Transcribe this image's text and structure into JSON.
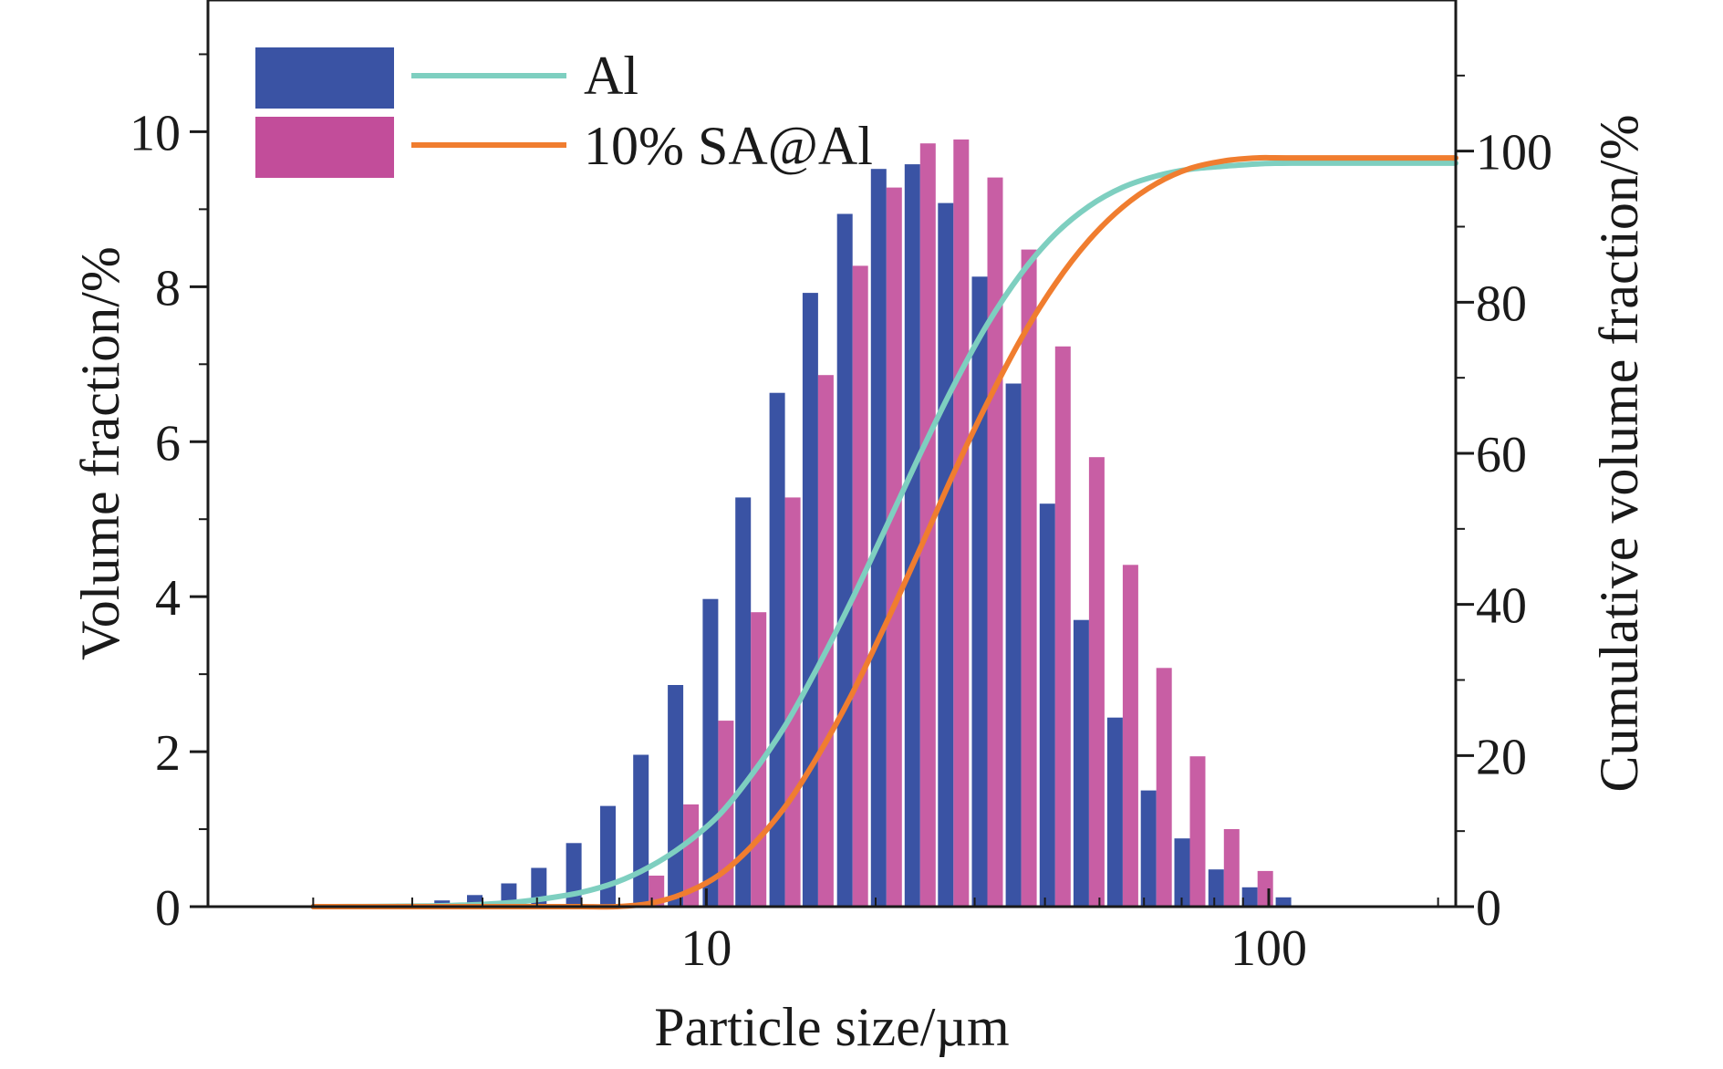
{
  "chart_data": {
    "type": "bar",
    "xscale": "log",
    "xlabel": "Particle size/µm",
    "ylabel": "Volume fraction/%",
    "y2label": "Cumulative volume fraction/%",
    "xlim": [
      1.3,
      215
    ],
    "ylim": [
      0,
      11.7
    ],
    "y2lim": [
      0,
      120
    ],
    "x_ticks": [
      {
        "value": 10,
        "label": "10"
      },
      {
        "value": 100,
        "label": "100"
      }
    ],
    "y_ticks": [
      {
        "value": 0,
        "label": "0"
      },
      {
        "value": 2,
        "label": "2"
      },
      {
        "value": 4,
        "label": "4"
      },
      {
        "value": 6,
        "label": "6"
      },
      {
        "value": 8,
        "label": "8"
      },
      {
        "value": 10,
        "label": "10"
      }
    ],
    "y2_ticks": [
      {
        "value": 0,
        "label": "0"
      },
      {
        "value": 20,
        "label": "20"
      },
      {
        "value": 40,
        "label": "40"
      },
      {
        "value": 60,
        "label": "60"
      },
      {
        "value": 80,
        "label": "80"
      },
      {
        "value": 100,
        "label": "100"
      }
    ],
    "grid": false,
    "legend_position": "top-left",
    "bin_sizes": [
      2.0,
      2.3,
      2.6,
      3.0,
      3.5,
      4.0,
      4.6,
      5.2,
      6.0,
      6.9,
      7.9,
      9.1,
      10.5,
      12.0,
      13.8,
      15.8,
      18.2,
      20.9,
      24.0,
      27.5,
      31.6,
      36.3,
      41.7,
      47.9,
      55.0,
      63.1,
      72.4,
      83.2,
      95.5,
      109.6
    ],
    "series": [
      {
        "name": "Al",
        "bar_color": "#3a53a4",
        "line_color": "#7ecfc0",
        "values": [
          0.0,
          0.01,
          0.02,
          0.04,
          0.08,
          0.15,
          0.3,
          0.5,
          0.82,
          1.3,
          1.96,
          2.86,
          3.97,
          5.28,
          6.63,
          7.92,
          8.94,
          9.52,
          9.58,
          9.08,
          8.13,
          6.75,
          5.2,
          3.7,
          2.44,
          1.5,
          0.88,
          0.48,
          0.25,
          0.12
        ],
        "cumulative": [
          0.0,
          0.01,
          0.03,
          0.07,
          0.15,
          0.3,
          0.6,
          1.1,
          1.9,
          3.2,
          5.2,
          8.1,
          12.0,
          17.3,
          23.9,
          31.8,
          40.8,
          50.3,
          59.9,
          68.9,
          77.1,
          83.8,
          89.0,
          92.7,
          95.2,
          96.7,
          97.6,
          98.0,
          98.3,
          98.4
        ]
      },
      {
        "name": "10% SA@Al",
        "bar_color": "#c24d9a",
        "line_color": "#f07d2f",
        "values": [
          0.0,
          0.0,
          0.0,
          0.0,
          0.0,
          0.0,
          0.0,
          0.0,
          0.0,
          0.0,
          0.4,
          1.32,
          2.4,
          3.8,
          5.28,
          6.86,
          8.27,
          9.28,
          9.85,
          9.9,
          9.41,
          8.48,
          7.23,
          5.8,
          4.41,
          3.08,
          1.94,
          1.0,
          0.46,
          0.0
        ],
        "cumulative": [
          0.0,
          0.0,
          0.0,
          0.0,
          0.0,
          0.0,
          0.0,
          0.0,
          0.0,
          0.0,
          0.4,
          1.7,
          4.1,
          7.9,
          13.2,
          20.0,
          28.3,
          37.6,
          47.4,
          57.3,
          66.7,
          75.2,
          82.4,
          88.2,
          92.6,
          95.7,
          97.7,
          98.7,
          99.1,
          99.1
        ]
      }
    ]
  }
}
